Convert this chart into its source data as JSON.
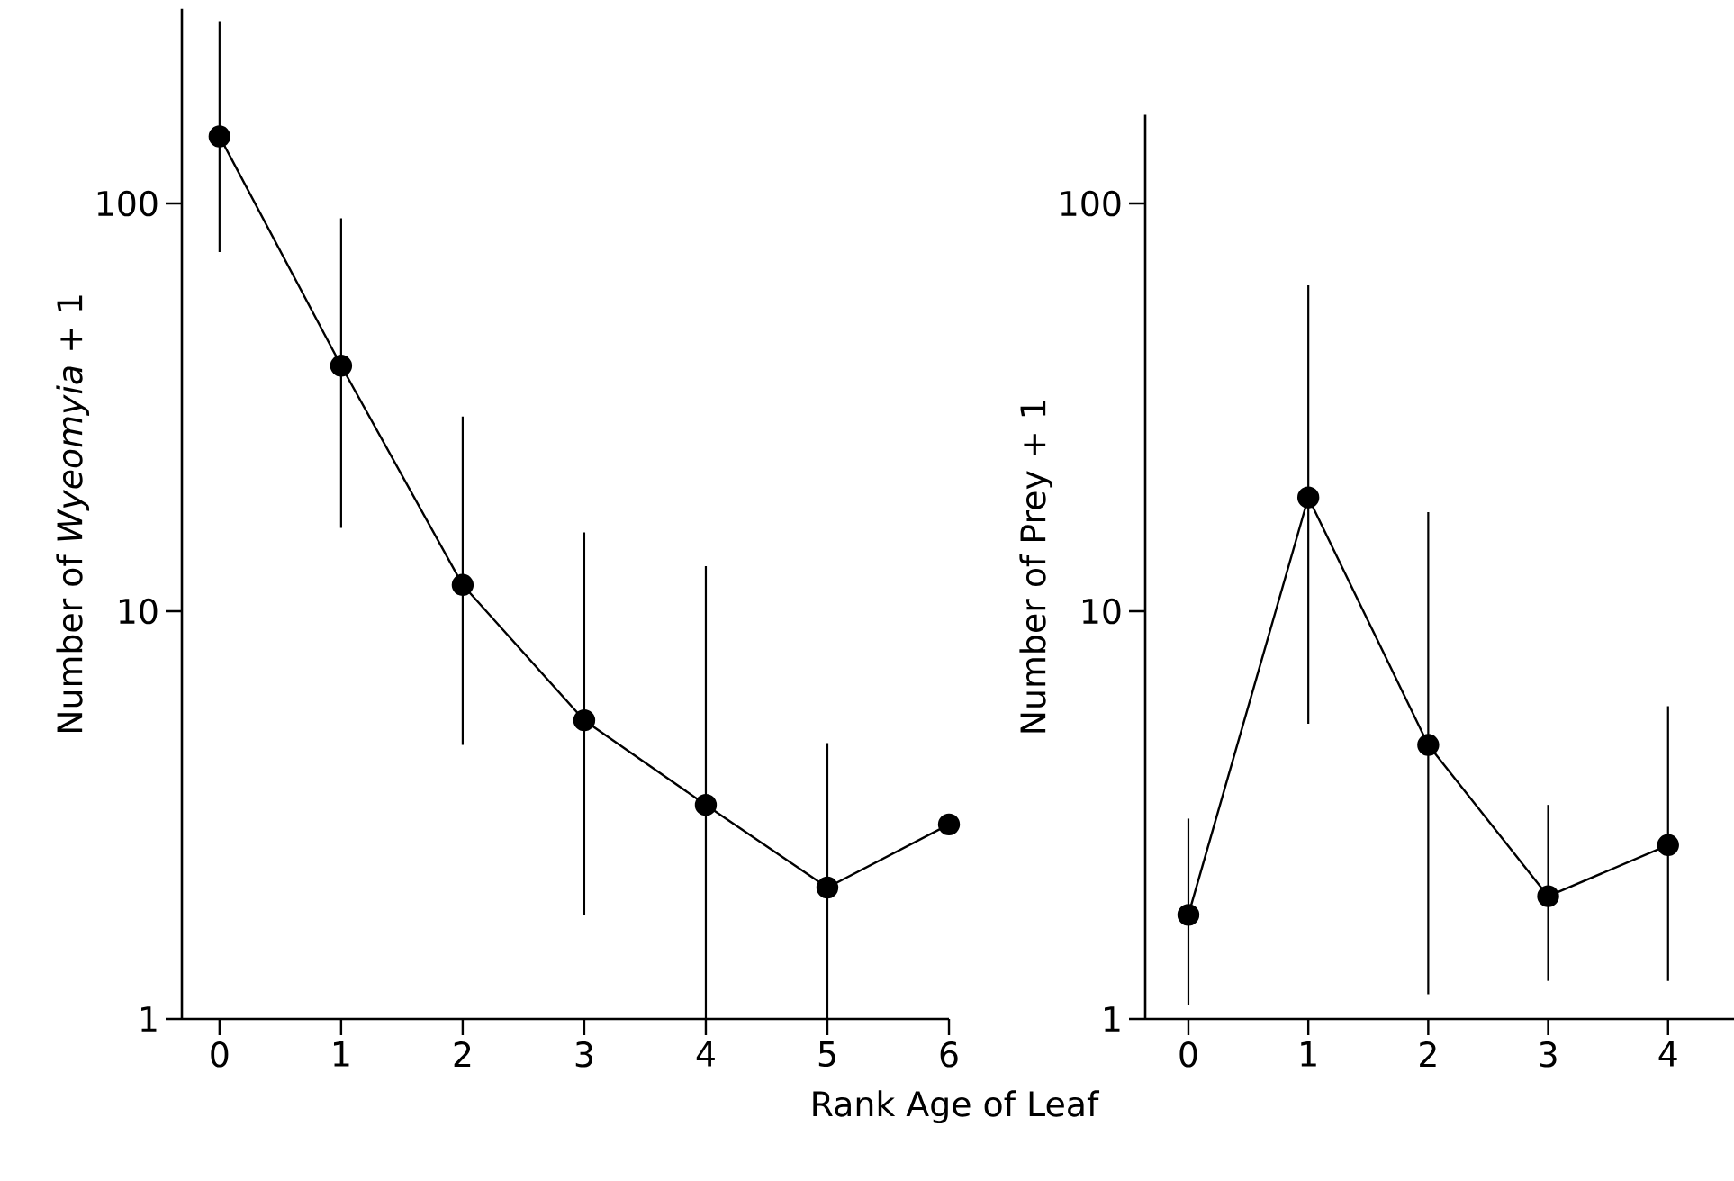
{
  "chart_data": [
    {
      "type": "line",
      "xlabel": "Rank Age of Leaf",
      "ylabel": "Number of *Wyeomyia* + 1",
      "x": [
        0,
        1,
        2,
        3,
        4,
        5,
        6
      ],
      "series": [
        {
          "color": "#000000",
          "values": [
            146,
            40,
            11.6,
            5.4,
            3.35,
            2.1,
            3.0
          ],
          "errors": [
            [
              76,
              280
            ],
            [
              16,
              92
            ],
            [
              4.7,
              30
            ],
            [
              1.8,
              15.6
            ],
            [
              1,
              12.9
            ],
            [
              1,
              4.75
            ],
            null
          ]
        }
      ],
      "xlim": [
        -0.31,
        6
      ],
      "ylim": [
        1,
        300
      ],
      "xticks": [
        0,
        1,
        2,
        3,
        4,
        5,
        6
      ],
      "yticks": [
        1,
        10,
        100
      ],
      "log": "y",
      "marker": "circle",
      "line_style": "solid"
    },
    {
      "type": "line",
      "ylabel": "Number of Prey + 1",
      "x": [
        0,
        1,
        2,
        3,
        4
      ],
      "series": [
        {
          "color": "#000000",
          "values": [
            1.8,
            19,
            4.7,
            2.0,
            2.67
          ],
          "errors": [
            [
              1.08,
              3.1
            ],
            [
              5.3,
              63
            ],
            [
              1.15,
              17.5
            ],
            [
              1.24,
              3.35
            ],
            [
              1.24,
              5.85
            ]
          ]
        }
      ],
      "xlim": [
        -0.36,
        4.55
      ],
      "ylim": [
        1,
        165
      ],
      "xticks": [
        0,
        1,
        2,
        3,
        4
      ],
      "yticks": [
        1,
        10,
        100
      ],
      "log": "y",
      "marker": "circle",
      "line_style": "solid"
    }
  ]
}
